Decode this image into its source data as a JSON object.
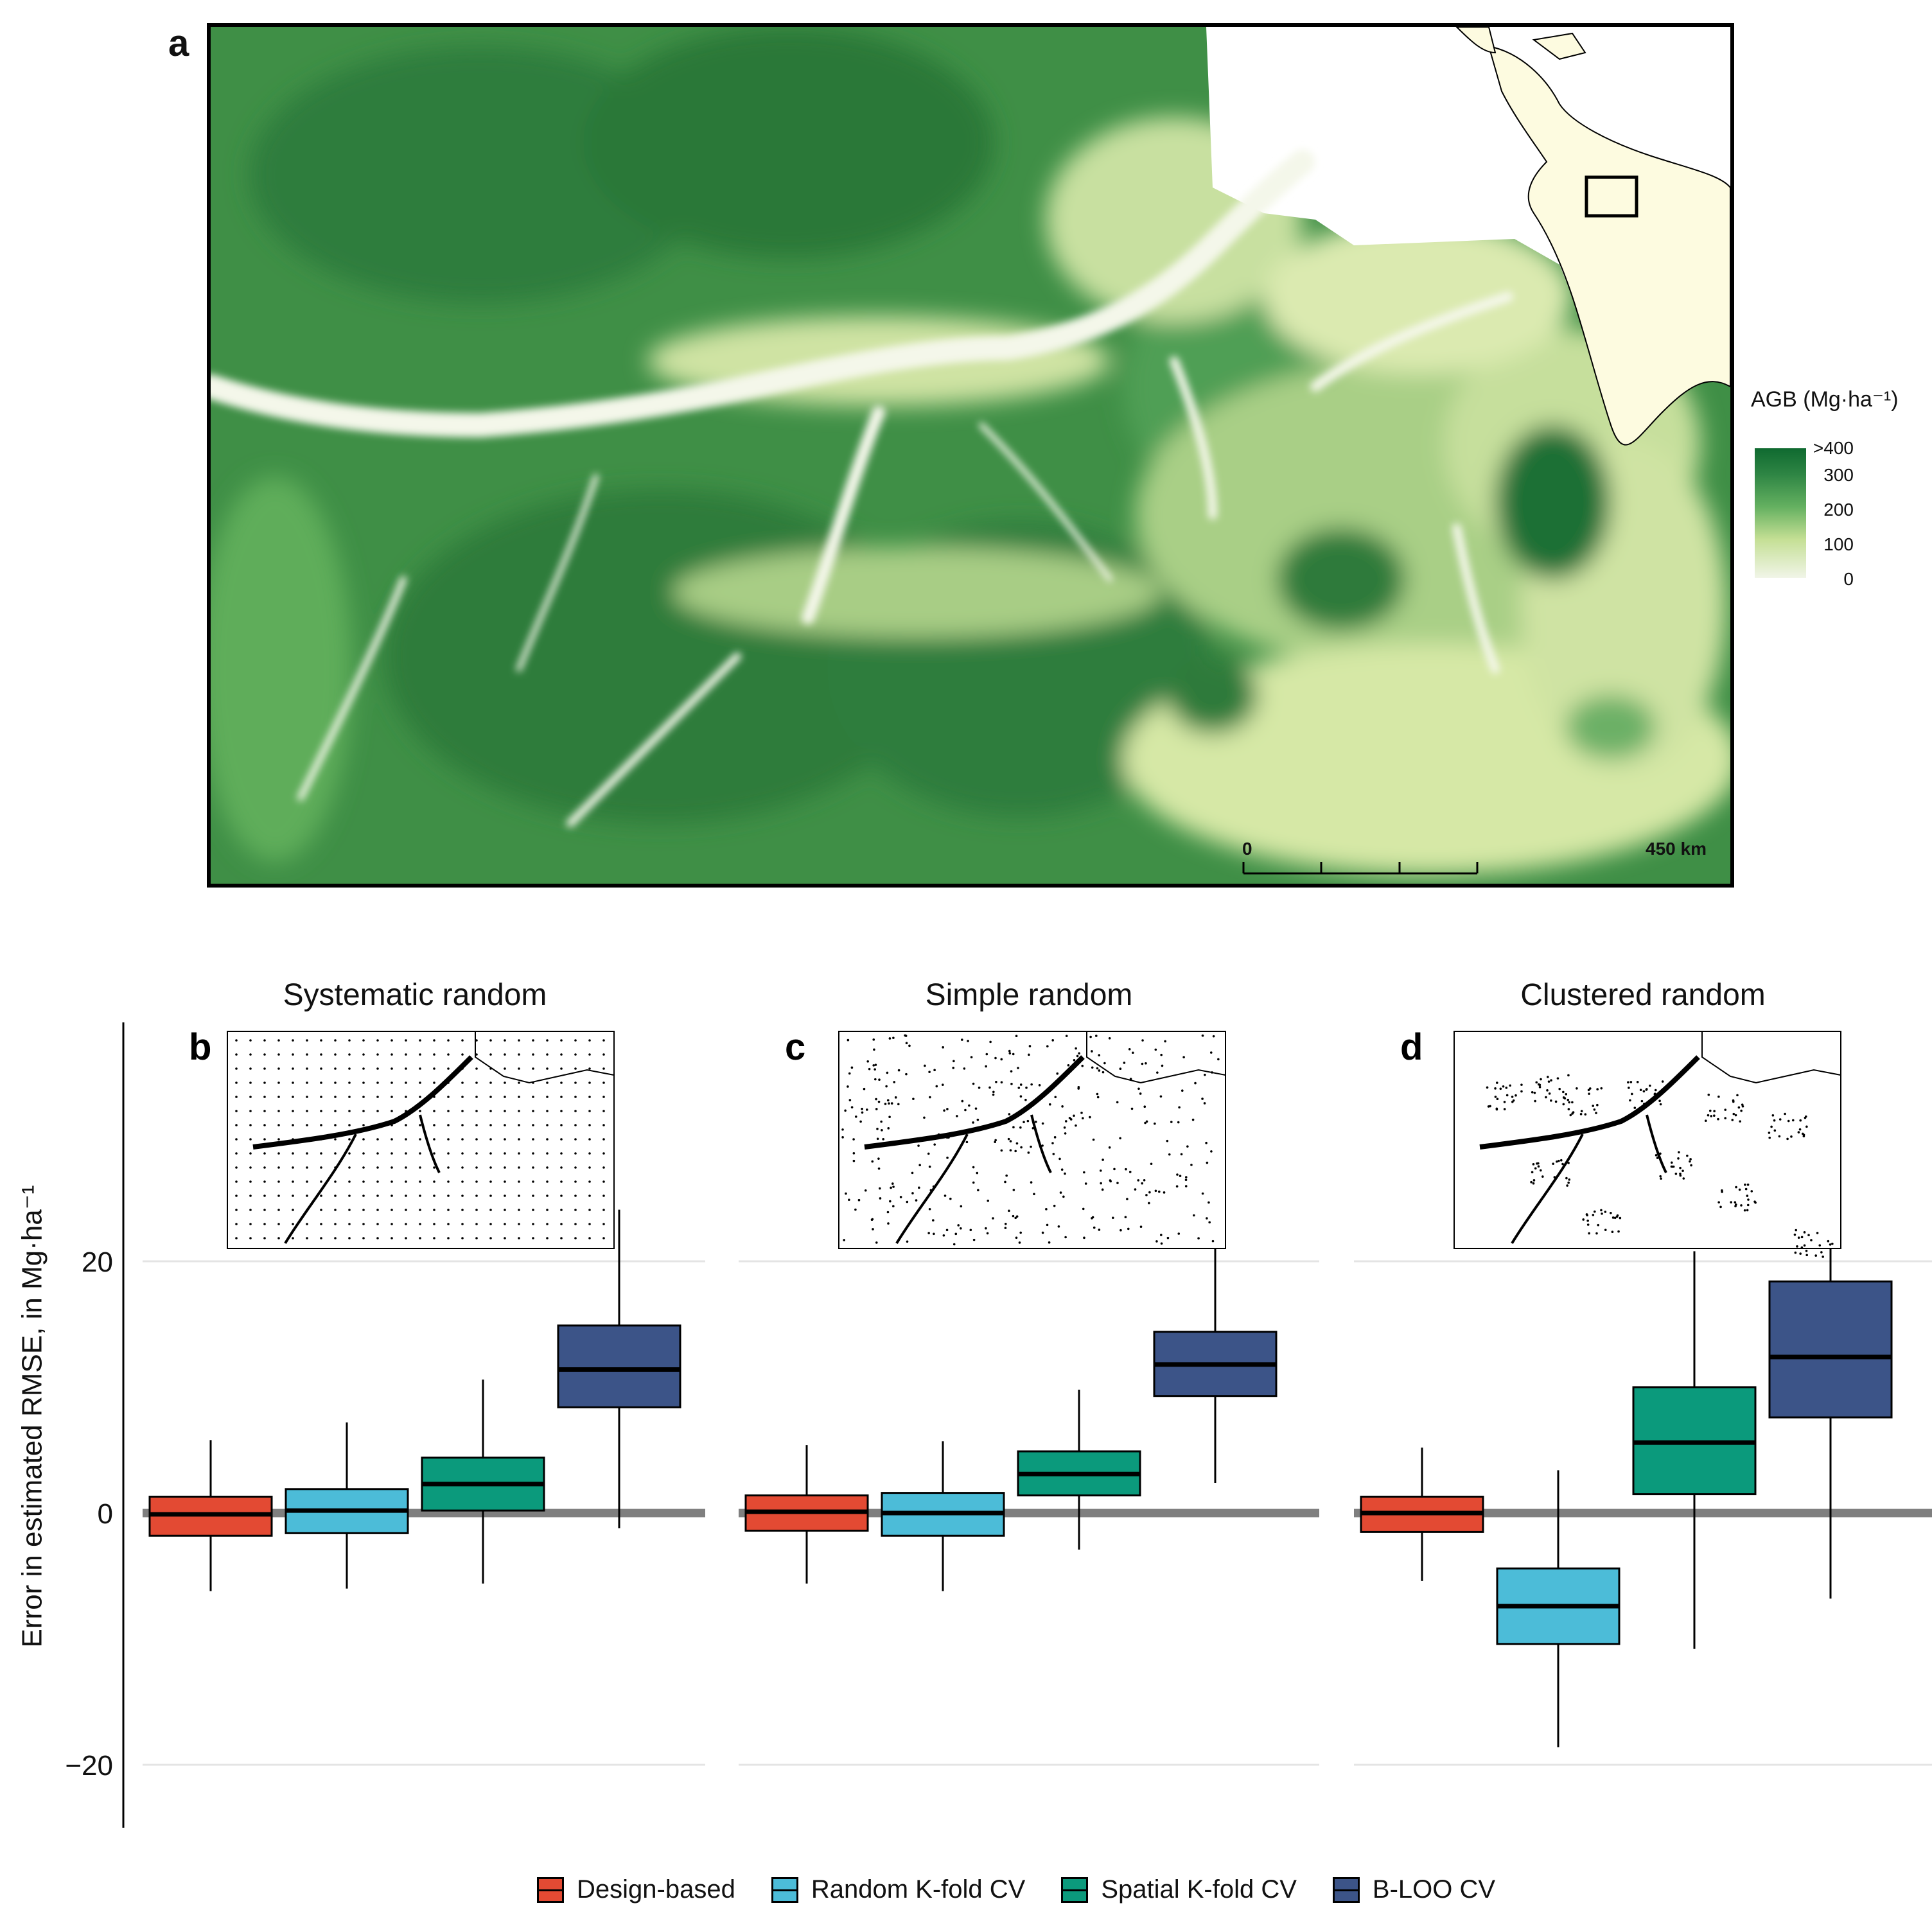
{
  "panel_a": {
    "letter": "a",
    "legend_title": "AGB (Mg·ha⁻¹)",
    "legend_ticks": [
      ">400",
      "300",
      "200",
      "100",
      "0"
    ],
    "scale_start": "0",
    "scale_end": "450 km",
    "colors": {
      "high": "#0f6a30",
      "mid": "#5fad5a",
      "low": "#e8f2b8",
      "zero": "#f4f7ec",
      "inset_land": "#fdfbe0"
    }
  },
  "chart_data": {
    "type": "boxplot",
    "ylabel": "Error in estimated RMSE, in Mg·ha⁻¹",
    "yticks": [
      "20",
      "0",
      "−20"
    ],
    "ylim": [
      -25,
      38
    ],
    "reference_line": 0,
    "series": [
      {
        "name": "Design-based",
        "color": "#e34a33"
      },
      {
        "name": "Random K-fold CV",
        "color": "#4cbcd8"
      },
      {
        "name": "Spatial K-fold CV",
        "color": "#0b9a7c"
      },
      {
        "name": "B-LOO CV",
        "color": "#3c5488"
      }
    ],
    "facets": [
      {
        "letter": "b",
        "title": "Systematic random",
        "boxes": [
          {
            "min": -6.2,
            "q1": -1.8,
            "median": -0.1,
            "q3": 1.3,
            "max": 5.8
          },
          {
            "min": -6.0,
            "q1": -1.6,
            "median": 0.2,
            "q3": 1.9,
            "max": 7.2
          },
          {
            "min": -5.6,
            "q1": 0.2,
            "median": 2.3,
            "q3": 4.4,
            "max": 10.6
          },
          {
            "min": -1.2,
            "q1": 8.4,
            "median": 11.4,
            "q3": 14.9,
            "max": 24.1
          }
        ]
      },
      {
        "letter": "c",
        "title": "Simple random",
        "boxes": [
          {
            "min": -5.6,
            "q1": -1.4,
            "median": 0.1,
            "q3": 1.4,
            "max": 5.4
          },
          {
            "min": -6.2,
            "q1": -1.8,
            "median": 0.0,
            "q3": 1.6,
            "max": 5.7
          },
          {
            "min": -2.9,
            "q1": 1.4,
            "median": 3.1,
            "q3": 4.9,
            "max": 9.8
          },
          {
            "min": 2.4,
            "q1": 9.3,
            "median": 11.8,
            "q3": 14.4,
            "max": 21.7
          }
        ]
      },
      {
        "letter": "d",
        "title": "Clustered random",
        "boxes": [
          {
            "min": -5.4,
            "q1": -1.5,
            "median": 0.0,
            "q3": 1.3,
            "max": 5.2
          },
          {
            "min": -18.6,
            "q1": -10.4,
            "median": -7.4,
            "q3": -4.4,
            "max": 3.4
          },
          {
            "min": -10.8,
            "q1": 1.5,
            "median": 5.6,
            "q3": 10.0,
            "max": 20.8
          },
          {
            "min": -6.8,
            "q1": 7.6,
            "median": 12.4,
            "q3": 18.4,
            "max": 34.4
          }
        ]
      }
    ]
  }
}
